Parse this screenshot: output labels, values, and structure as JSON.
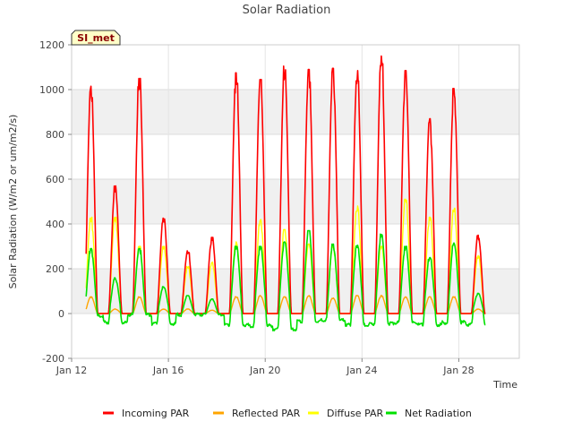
{
  "chart_data": {
    "type": "line",
    "title": "Solar Radiation",
    "xlabel": "Time",
    "ylabel": "Solar Radiation (W/m2 or um/m2/s)",
    "badge": "SI_met",
    "xlim": [
      12,
      30.5
    ],
    "ylim": [
      -200,
      1200
    ],
    "x_ticks": [
      {
        "value": 12,
        "label": "Jan 12"
      },
      {
        "value": 16,
        "label": "Jan 16"
      },
      {
        "value": 20,
        "label": "Jan 20"
      },
      {
        "value": 24,
        "label": "Jan 24"
      },
      {
        "value": 28,
        "label": "Jan 28"
      }
    ],
    "y_ticks": [
      {
        "value": -200,
        "label": "-200"
      },
      {
        "value": 0,
        "label": "0"
      },
      {
        "value": 200,
        "label": "200"
      },
      {
        "value": 400,
        "label": "400"
      },
      {
        "value": 600,
        "label": "600"
      },
      {
        "value": 800,
        "label": "800"
      },
      {
        "value": 1000,
        "label": "1000"
      },
      {
        "value": 1200,
        "label": "1200"
      }
    ],
    "days": [
      12.8,
      13.8,
      14.8,
      15.8,
      16.8,
      17.8,
      18.8,
      19.8,
      20.8,
      21.8,
      22.8,
      23.8,
      24.8,
      25.8,
      26.8,
      27.8,
      28.8
    ],
    "day_halfwidth": 0.28,
    "night_values": [
      -10,
      -40,
      -5,
      -45,
      -5,
      -5,
      -50,
      -55,
      -70,
      -35,
      -30,
      -50,
      -45,
      -40,
      -50,
      -40,
      -50
    ],
    "series": [
      {
        "name": "Incoming PAR",
        "color": "#ff0000",
        "peaks": [
          1015,
          570,
          1050,
          430,
          280,
          340,
          1075,
          1045,
          1105,
          1090,
          1095,
          1085,
          1150,
          1085,
          870,
          1005,
          350
        ]
      },
      {
        "name": "Reflected PAR",
        "color": "#ffa500",
        "peaks": [
          75,
          20,
          75,
          20,
          20,
          15,
          75,
          80,
          75,
          80,
          70,
          80,
          80,
          75,
          75,
          75,
          20
        ]
      },
      {
        "name": "Diffuse PAR",
        "color": "#ffff00",
        "peaks": [
          430,
          430,
          300,
          300,
          210,
          230,
          320,
          420,
          375,
          310,
          300,
          480,
          300,
          510,
          430,
          470,
          260
        ]
      },
      {
        "name": "Net Radiation",
        "color": "#00e000",
        "peaks": [
          290,
          160,
          290,
          120,
          80,
          65,
          300,
          300,
          320,
          370,
          310,
          305,
          355,
          300,
          250,
          320,
          90
        ]
      }
    ]
  }
}
